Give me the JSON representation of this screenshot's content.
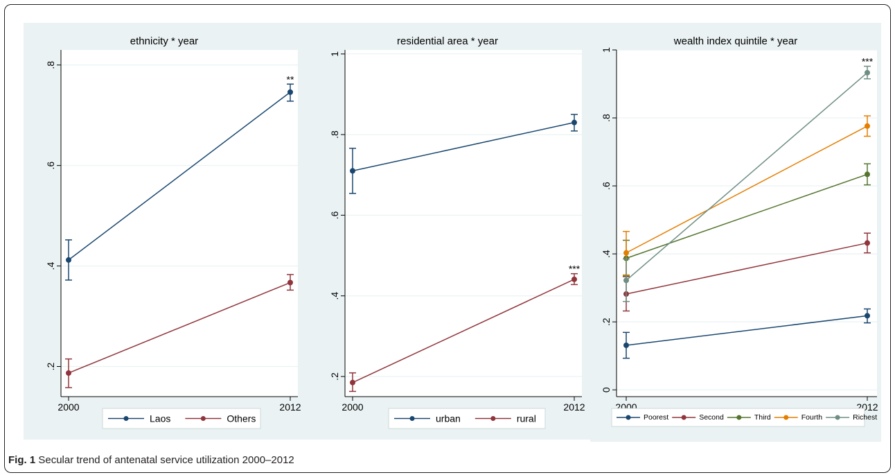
{
  "caption": {
    "label": "Fig. 1",
    "text": "Secular trend of antenatal service utilization 2000–2012"
  },
  "colors": {
    "panel_bg": "#eaf2f3",
    "plot_bg": "#ffffff",
    "axis": "#000000",
    "grid": "#eaf2f3"
  },
  "chart_data": [
    {
      "type": "line",
      "title": "ethnicity * year",
      "xlabel": "",
      "ylabel": "",
      "x": [
        2000,
        2012
      ],
      "x_ticks": [
        "2000",
        "2012"
      ],
      "ylim": [
        0.14,
        0.83
      ],
      "y_ticks": [
        0.2,
        0.4,
        0.6,
        0.8
      ],
      "y_tick_labels": [
        ".2",
        ".4",
        ".6",
        ".8"
      ],
      "grid": true,
      "legend_position": "bottom",
      "series": [
        {
          "name": "Laos",
          "color": "#1a476f",
          "values": [
            0.412,
            0.746
          ],
          "ci_low": [
            0.372,
            0.728
          ],
          "ci_high": [
            0.452,
            0.762
          ]
        },
        {
          "name": "Others",
          "color": "#90353b",
          "values": [
            0.187,
            0.367
          ],
          "ci_low": [
            0.158,
            0.352
          ],
          "ci_high": [
            0.215,
            0.383
          ]
        }
      ],
      "annotations": [
        {
          "text": "**",
          "x": 2012,
          "y": 0.762
        }
      ]
    },
    {
      "type": "line",
      "title": "residential area * year",
      "xlabel": "",
      "ylabel": "",
      "x": [
        2000,
        2012
      ],
      "x_ticks": [
        "2000",
        "2012"
      ],
      "ylim": [
        0.15,
        1.01
      ],
      "y_ticks": [
        0.2,
        0.4,
        0.6,
        0.8,
        1.0
      ],
      "y_tick_labels": [
        ".2",
        ".4",
        ".6",
        ".8",
        "1"
      ],
      "grid": true,
      "legend_position": "bottom",
      "series": [
        {
          "name": "urban",
          "color": "#1a476f",
          "values": [
            0.71,
            0.83
          ],
          "ci_low": [
            0.654,
            0.809
          ],
          "ci_high": [
            0.766,
            0.85
          ]
        },
        {
          "name": "rural",
          "color": "#90353b",
          "values": [
            0.185,
            0.441
          ],
          "ci_low": [
            0.163,
            0.428
          ],
          "ci_high": [
            0.209,
            0.455
          ]
        }
      ],
      "annotations": [
        {
          "text": "***",
          "x": 2012,
          "y": 0.455
        }
      ]
    },
    {
      "type": "line",
      "title": "wealth index quintile * year",
      "xlabel": "",
      "ylabel": "",
      "x": [
        2000,
        2012
      ],
      "x_ticks": [
        "2000",
        "2012"
      ],
      "ylim": [
        -0.02,
        1.0
      ],
      "y_ticks": [
        0,
        0.2,
        0.4,
        0.6,
        0.8,
        1.0
      ],
      "y_tick_labels": [
        "0",
        ".2",
        ".4",
        ".6",
        ".8",
        "1"
      ],
      "grid": true,
      "legend_position": "bottom",
      "series": [
        {
          "name": "Poorest",
          "color": "#1a476f",
          "values": [
            0.131,
            0.218
          ],
          "ci_low": [
            0.093,
            0.197
          ],
          "ci_high": [
            0.169,
            0.238
          ]
        },
        {
          "name": "Second",
          "color": "#90353b",
          "values": [
            0.282,
            0.432
          ],
          "ci_low": [
            0.232,
            0.403
          ],
          "ci_high": [
            0.333,
            0.461
          ]
        },
        {
          "name": "Third",
          "color": "#55752f",
          "values": [
            0.387,
            0.634
          ],
          "ci_low": [
            0.335,
            0.603
          ],
          "ci_high": [
            0.44,
            0.665
          ]
        },
        {
          "name": "Fourth",
          "color": "#e37e00",
          "values": [
            0.403,
            0.776
          ],
          "ci_low": [
            0.338,
            0.746
          ],
          "ci_high": [
            0.466,
            0.806
          ]
        },
        {
          "name": "Richest",
          "color": "#6e8e84",
          "values": [
            0.322,
            0.933
          ],
          "ci_low": [
            0.26,
            0.915
          ],
          "ci_high": [
            0.385,
            0.952
          ]
        }
      ],
      "annotations": [
        {
          "text": "***",
          "x": 2012,
          "y": 0.952
        }
      ]
    }
  ]
}
